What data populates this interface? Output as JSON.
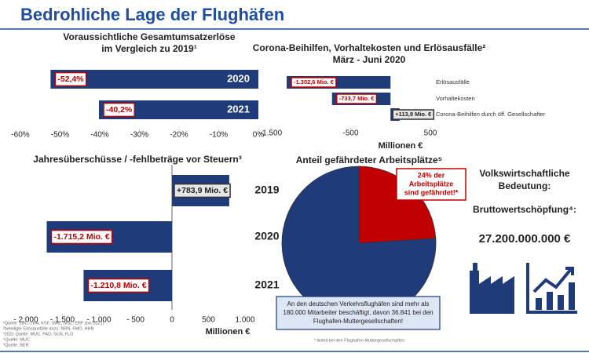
{
  "title": "Bedrohliche Lage der Flughäfen",
  "chart_data": [
    {
      "type": "hbar",
      "title": [
        "Voraussichtliche Gesamtumsatzerlöse",
        "im Vergleich zu 2019¹"
      ],
      "categories": [
        "2020",
        "2021"
      ],
      "values": [
        -52.4,
        -40.2
      ],
      "value_labels": [
        "-52,4%",
        "-40,2%"
      ],
      "color": "#1f3b7a",
      "xlim": [
        -60,
        0
      ],
      "xticks": [
        {
          "value": -60,
          "label": "-60%"
        },
        {
          "value": -50,
          "label": "-50%"
        },
        {
          "value": -40,
          "label": "-40%"
        },
        {
          "value": -30,
          "label": "-30%"
        },
        {
          "value": -20,
          "label": "-20%"
        },
        {
          "value": -10,
          "label": "-10%"
        },
        {
          "value": 0,
          "label": "0%"
        }
      ]
    },
    {
      "type": "hbar",
      "title": [
        "Corona-Beihilfen, Vorhaltekosten und Erlösausfälle²",
        "März - Juni 2020"
      ],
      "categories": [
        "Erlösausfälle",
        "Vorhaltekosten",
        "Corona-Beihilfen durch öff. Gesellschafter"
      ],
      "values": [
        -1302.6,
        -733.7,
        113.9
      ],
      "value_labels": [
        "-1.302,6 Mio. €",
        "-733,7 Mio. €",
        "+113,9 Mio. €"
      ],
      "color": "#1f3b7a",
      "xlim": [
        -1500,
        500
      ],
      "xticks": [
        {
          "value": -1500,
          "label": "-1.500"
        },
        -500,
        500
      ],
      "xlabel": "Millionen €"
    },
    {
      "type": "hbar",
      "title": [
        "Jahresüberschüsse / -fehlbeträge vor Steuern³"
      ],
      "categories": [
        "2019",
        "2020",
        "2021"
      ],
      "values": [
        783.9,
        -1715.2,
        -1210.8
      ],
      "value_labels": [
        "+783,9 Mio. €",
        "-1.715,2 Mio. €",
        "-1.210,8 Mio. €"
      ],
      "color": "#1f3b7a",
      "xlim": [
        -2000,
        1000
      ],
      "xticks": [
        {
          "value": -2000,
          "label": "- 2.000"
        },
        {
          "value": -1500,
          "label": "- 1.500"
        },
        {
          "value": -1000,
          "label": "- 1.000"
        },
        {
          "value": -500,
          "label": "- 500"
        },
        0,
        500,
        {
          "value": 1000,
          "label": "1.000"
        }
      ],
      "xlabel": "Millionen €"
    },
    {
      "type": "pie",
      "title": [
        "Anteil gefährdeter Arbeitsplätze⁵"
      ],
      "values": [
        24,
        76
      ],
      "colors": [
        "#c00000",
        "#1f3b7a"
      ],
      "annotation": [
        "24% der",
        "Arbeitsplätze",
        "sind gefährdet!*"
      ],
      "note": [
        "An den deutschen Verkehrsflughäfen sind mehr als",
        "180.000 Mitarbeiter beschäftigt, davon 36.841 bei den",
        "Flughafen-Muttergesellschaften!"
      ],
      "footnote": "* Anteil bei den Flughafen-Muttergesellschaften"
    }
  ],
  "economy": {
    "heading": [
      "Volkswirtschaftliche",
      "Bedeutung:"
    ],
    "label": "Bruttowertschöpfung⁴:",
    "value": "27.200.000.000 €"
  },
  "footnotes": [
    "¹Quelle: LBC, LHA, KSF, SWE, MSL, ERF (bis 2021)",
    "²beteiligte Erlösausfälle dazu: NRN, FMO, HHN",
    "³2021 Quelle: MUC, PAD, SCN, FLG",
    "⁴Quelle: MUC",
    "⁵Quelle: BER"
  ]
}
